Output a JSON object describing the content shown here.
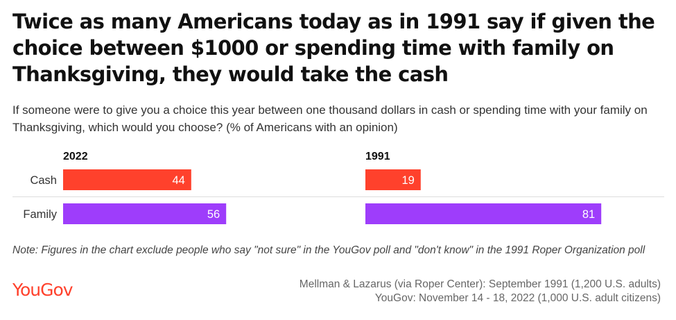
{
  "title": "Twice as many Americans today as in 1991 say if given the choice between $1000 or spending time with family on Thanksgiving, they would take the cash",
  "subtitle": "If someone were to give you a choice this year between one thousand dollars in cash or spending time with your family on Thanksgiving, which would you choose? (% of Americans with an opinion)",
  "chart_data": {
    "type": "bar",
    "orientation": "horizontal",
    "categories": [
      "Cash",
      "Family"
    ],
    "xlim": [
      0,
      100
    ],
    "panels": [
      {
        "name": "2022",
        "values": [
          44,
          56
        ]
      },
      {
        "name": "1991",
        "values": [
          19,
          81
        ]
      }
    ],
    "colors": {
      "Cash": "#ff412c",
      "Family": "#9e3dfb"
    },
    "value_label_color": "#ffffff"
  },
  "note": "Note: Figures in the chart exclude people who say \"not sure\" in the YouGov poll and \"don't know\" in the 1991 Roper Organization poll",
  "brand": {
    "name": "YouGov",
    "color": "#ff412c"
  },
  "sources": [
    "Mellman & Lazarus (via Roper Center): September 1991 (1,200 U.S. adults)",
    "YouGov: November 14 - 18, 2022 (1,000 U.S. adult citizens)"
  ]
}
